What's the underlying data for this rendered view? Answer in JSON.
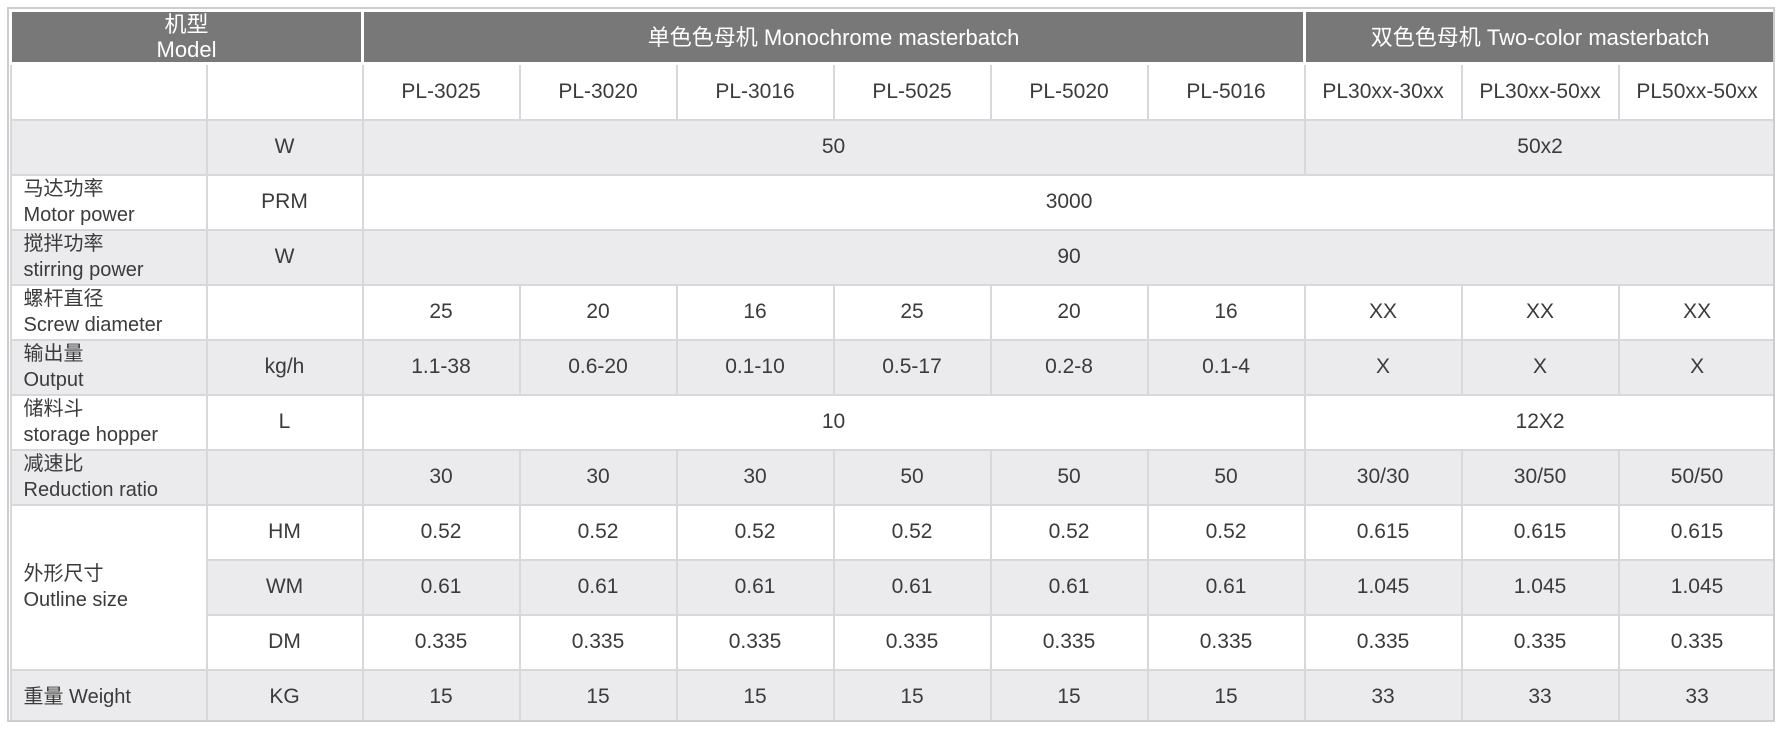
{
  "colors": {
    "header_bg": "#787878",
    "header_text": "#ffffff",
    "row_shade": "#ebebed",
    "row_white": "#ffffff",
    "grid_line": "#d8d8da",
    "outer_border": "#cdcdcf",
    "text": "#3b3b3b"
  },
  "table": {
    "header": {
      "model": "机型\nModel",
      "monochrome": "单色色母机 Monochrome masterbatch",
      "two_color": "双色色母机 Two-color masterbatch"
    },
    "models": [
      "PL-3025",
      "PL-3020",
      "PL-3016",
      "PL-5025",
      "PL-5020",
      "PL-5016",
      "PL30xx-30xx",
      "PL30xx-50xx",
      "PL50xx-50xx"
    ],
    "rows": {
      "power": {
        "label": "",
        "unit": "W",
        "mono": "50",
        "two": "50x2"
      },
      "motor": {
        "label": "马达功率\nMotor power",
        "unit": "PRM",
        "all": "3000"
      },
      "stirring": {
        "label": "搅拌功率\nstirring power",
        "unit": "W",
        "all": "90"
      },
      "screw": {
        "label": "螺杆直径\nScrew diameter",
        "unit": "",
        "values": [
          "25",
          "20",
          "16",
          "25",
          "20",
          "16",
          "XX",
          "XX",
          "XX"
        ]
      },
      "output": {
        "label": "输出量\nOutput",
        "unit": "kg/h",
        "values": [
          "1.1-38",
          "0.6-20",
          "0.1-10",
          "0.5-17",
          "0.2-8",
          "0.1-4",
          "X",
          "X",
          "X"
        ]
      },
      "hopper": {
        "label": "储料斗\nstorage hopper",
        "unit": "L",
        "mono": "10",
        "two": "12X2"
      },
      "reduction": {
        "label": "减速比\nReduction ratio",
        "unit": "",
        "values": [
          "30",
          "30",
          "30",
          "50",
          "50",
          "50",
          "30/30",
          "30/50",
          "50/50"
        ]
      },
      "outline": {
        "label": "外形尺寸\nOutline size"
      },
      "outline_hm": {
        "unit": "HM",
        "values": [
          "0.52",
          "0.52",
          "0.52",
          "0.52",
          "0.52",
          "0.52",
          "0.615",
          "0.615",
          "0.615"
        ]
      },
      "outline_wm": {
        "unit": "WM",
        "values": [
          "0.61",
          "0.61",
          "0.61",
          "0.61",
          "0.61",
          "0.61",
          "1.045",
          "1.045",
          "1.045"
        ]
      },
      "outline_dm": {
        "unit": "DM",
        "values": [
          "0.335",
          "0.335",
          "0.335",
          "0.335",
          "0.335",
          "0.335",
          "0.335",
          "0.335",
          "0.335"
        ]
      },
      "weight": {
        "label": "重量 Weight",
        "unit": "KG",
        "values": [
          "15",
          "15",
          "15",
          "15",
          "15",
          "15",
          "33",
          "33",
          "33"
        ]
      }
    }
  }
}
